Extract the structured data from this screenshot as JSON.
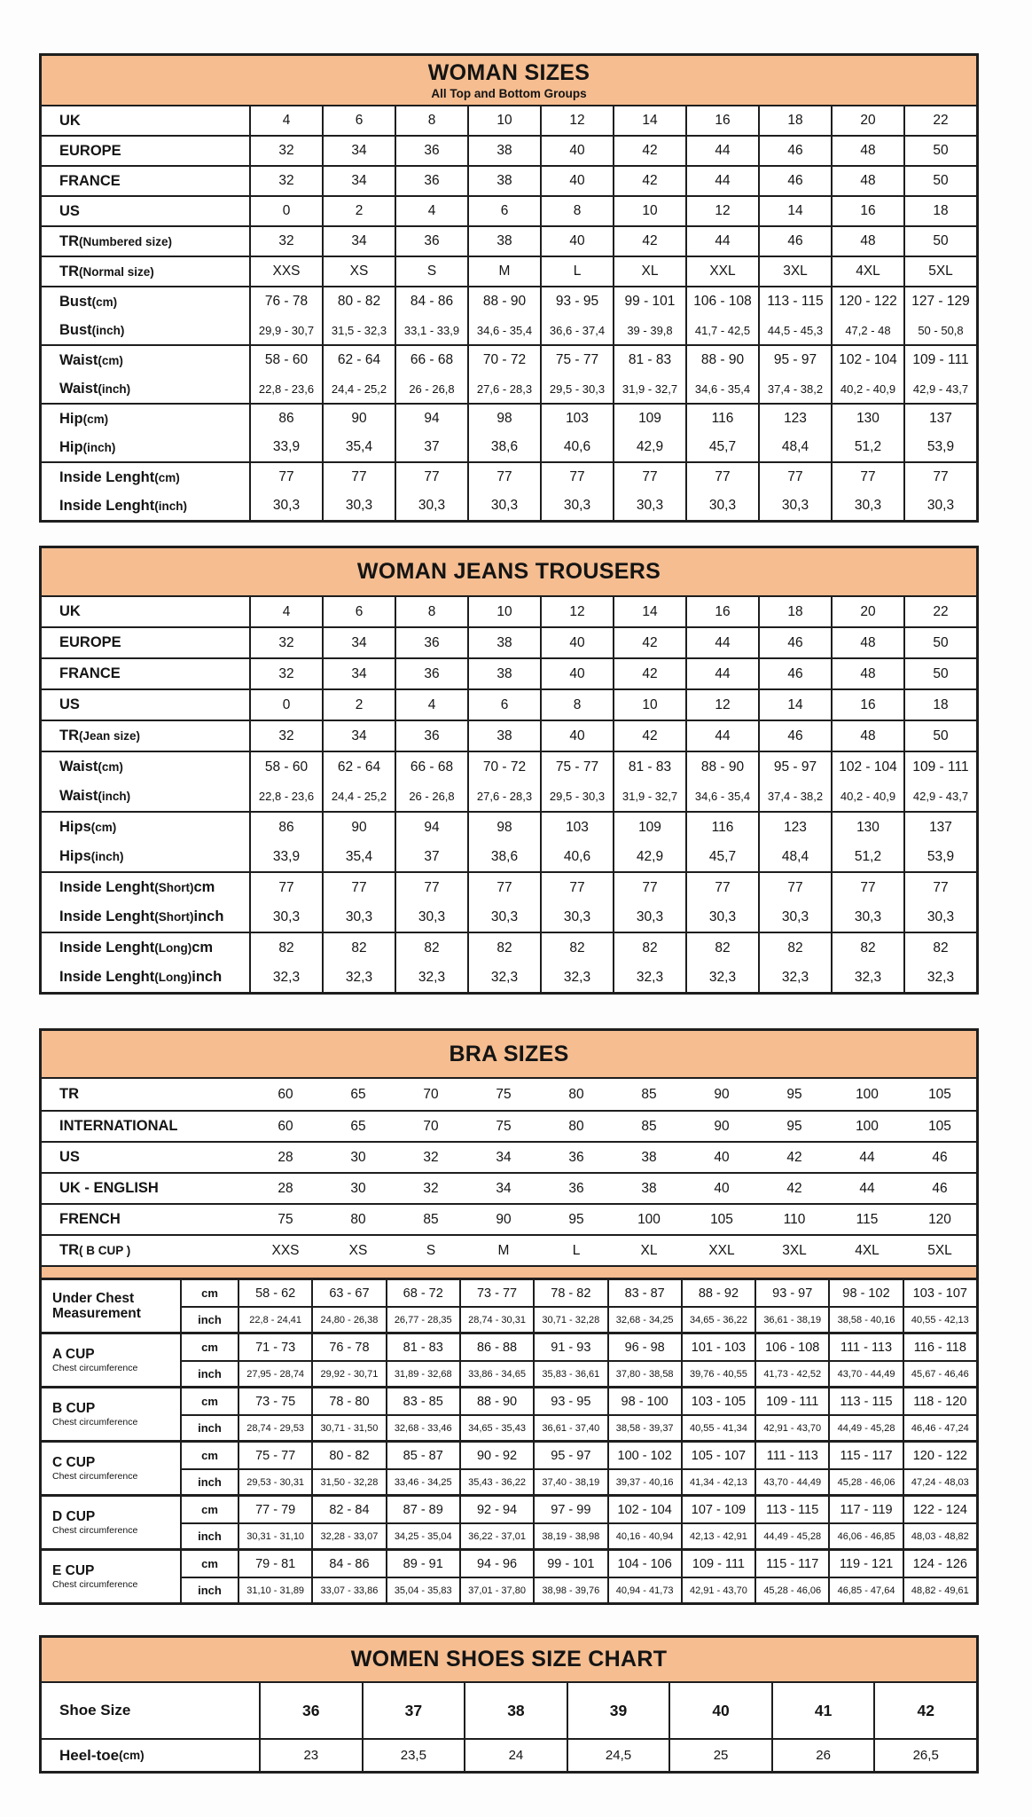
{
  "colors": {
    "header_bg": "#F5BD90",
    "border": "#1E1E1E",
    "text": "#141414",
    "page_bg": "#FDFDFD"
  },
  "woman_sizes": {
    "title": "WOMAN SIZES",
    "subtitle": "All Top and Bottom Groups",
    "groups": [
      [
        {
          "label": "UK",
          "values": [
            "4",
            "6",
            "8",
            "10",
            "12",
            "14",
            "16",
            "18",
            "20",
            "22"
          ]
        }
      ],
      [
        {
          "label": "EUROPE",
          "values": [
            "32",
            "34",
            "36",
            "38",
            "40",
            "42",
            "44",
            "46",
            "48",
            "50"
          ]
        }
      ],
      [
        {
          "label": "FRANCE",
          "values": [
            "32",
            "34",
            "36",
            "38",
            "40",
            "42",
            "44",
            "46",
            "48",
            "50"
          ]
        }
      ],
      [
        {
          "label": "US",
          "values": [
            "0",
            "2",
            "4",
            "6",
            "8",
            "10",
            "12",
            "14",
            "16",
            "18"
          ]
        }
      ],
      [
        {
          "label": "TR (Numbered size)",
          "values": [
            "32",
            "34",
            "36",
            "38",
            "40",
            "42",
            "44",
            "46",
            "48",
            "50"
          ]
        }
      ],
      [
        {
          "label": "TR (Normal size)",
          "values": [
            "XXS",
            "XS",
            "S",
            "M",
            "L",
            "XL",
            "XXL",
            "3XL",
            "4XL",
            "5XL"
          ]
        }
      ],
      [
        {
          "label": "Bust (cm)",
          "values": [
            "76 - 78",
            "80 - 82",
            "84 - 86",
            "88 - 90",
            "93 - 95",
            "99 - 101",
            "106 - 108",
            "113 - 115",
            "120 - 122",
            "127 - 129"
          ]
        },
        {
          "label": "Bust (inch)",
          "small": true,
          "values": [
            "29,9 - 30,7",
            "31,5 - 32,3",
            "33,1 - 33,9",
            "34,6 - 35,4",
            "36,6 - 37,4",
            "39 - 39,8",
            "41,7 - 42,5",
            "44,5 - 45,3",
            "47,2 - 48",
            "50 - 50,8"
          ]
        }
      ],
      [
        {
          "label": "Waist (cm)",
          "values": [
            "58 - 60",
            "62 - 64",
            "66 - 68",
            "70 - 72",
            "75 - 77",
            "81 - 83",
            "88 - 90",
            "95 - 97",
            "102 - 104",
            "109 - 111"
          ]
        },
        {
          "label": "Waist (inch)",
          "small": true,
          "values": [
            "22,8 - 23,6",
            "24,4 - 25,2",
            "26 - 26,8",
            "27,6 - 28,3",
            "29,5 - 30,3",
            "31,9 - 32,7",
            "34,6 - 35,4",
            "37,4 - 38,2",
            "40,2 - 40,9",
            "42,9 - 43,7"
          ]
        }
      ],
      [
        {
          "label": "Hip (cm)",
          "values": [
            "86",
            "90",
            "94",
            "98",
            "103",
            "109",
            "116",
            "123",
            "130",
            "137"
          ]
        },
        {
          "label": "Hip (inch)",
          "values": [
            "33,9",
            "35,4",
            "37",
            "38,6",
            "40,6",
            "42,9",
            "45,7",
            "48,4",
            "51,2",
            "53,9"
          ]
        }
      ],
      [
        {
          "label": "Inside Lenght (cm)",
          "values": [
            "77",
            "77",
            "77",
            "77",
            "77",
            "77",
            "77",
            "77",
            "77",
            "77"
          ]
        },
        {
          "label": "Inside Lenght (inch)",
          "values": [
            "30,3",
            "30,3",
            "30,3",
            "30,3",
            "30,3",
            "30,3",
            "30,3",
            "30,3",
            "30,3",
            "30,3"
          ]
        }
      ]
    ]
  },
  "jeans": {
    "title": "WOMAN JEANS TROUSERS",
    "groups": [
      [
        {
          "label": "UK",
          "values": [
            "4",
            "6",
            "8",
            "10",
            "12",
            "14",
            "16",
            "18",
            "20",
            "22"
          ]
        }
      ],
      [
        {
          "label": "EUROPE",
          "values": [
            "32",
            "34",
            "36",
            "38",
            "40",
            "42",
            "44",
            "46",
            "48",
            "50"
          ]
        }
      ],
      [
        {
          "label": "FRANCE",
          "values": [
            "32",
            "34",
            "36",
            "38",
            "40",
            "42",
            "44",
            "46",
            "48",
            "50"
          ]
        }
      ],
      [
        {
          "label": "US",
          "values": [
            "0",
            "2",
            "4",
            "6",
            "8",
            "10",
            "12",
            "14",
            "16",
            "18"
          ]
        }
      ],
      [
        {
          "label": "TR (Jean size)",
          "values": [
            "32",
            "34",
            "36",
            "38",
            "40",
            "42",
            "44",
            "46",
            "48",
            "50"
          ]
        }
      ],
      [
        {
          "label": "Waist (cm)",
          "values": [
            "58 - 60",
            "62 - 64",
            "66 - 68",
            "70 - 72",
            "75 - 77",
            "81 - 83",
            "88 - 90",
            "95 - 97",
            "102 - 104",
            "109 - 111"
          ]
        },
        {
          "label": "Waist (inch)",
          "small": true,
          "values": [
            "22,8 - 23,6",
            "24,4 - 25,2",
            "26 - 26,8",
            "27,6 - 28,3",
            "29,5 - 30,3",
            "31,9 - 32,7",
            "34,6 - 35,4",
            "37,4 - 38,2",
            "40,2 - 40,9",
            "42,9 - 43,7"
          ]
        }
      ],
      [
        {
          "label": "Hips (cm)",
          "values": [
            "86",
            "90",
            "94",
            "98",
            "103",
            "109",
            "116",
            "123",
            "130",
            "137"
          ]
        },
        {
          "label": "Hips (inch)",
          "values": [
            "33,9",
            "35,4",
            "37",
            "38,6",
            "40,6",
            "42,9",
            "45,7",
            "48,4",
            "51,2",
            "53,9"
          ]
        }
      ],
      [
        {
          "label": "Inside Lenght (Short) cm",
          "values": [
            "77",
            "77",
            "77",
            "77",
            "77",
            "77",
            "77",
            "77",
            "77",
            "77"
          ]
        },
        {
          "label": "Inside Lenght (Short) inch",
          "values": [
            "30,3",
            "30,3",
            "30,3",
            "30,3",
            "30,3",
            "30,3",
            "30,3",
            "30,3",
            "30,3",
            "30,3"
          ]
        }
      ],
      [
        {
          "label": "Inside Lenght (Long) cm",
          "values": [
            "82",
            "82",
            "82",
            "82",
            "82",
            "82",
            "82",
            "82",
            "82",
            "82"
          ]
        },
        {
          "label": "Inside Lenght (Long) inch",
          "values": [
            "32,3",
            "32,3",
            "32,3",
            "32,3",
            "32,3",
            "32,3",
            "32,3",
            "32,3",
            "32,3",
            "32,3"
          ]
        }
      ]
    ]
  },
  "bra": {
    "title": "BRA SIZES",
    "top_rows": [
      {
        "label": "TR",
        "values": [
          "60",
          "65",
          "70",
          "75",
          "80",
          "85",
          "90",
          "95",
          "100",
          "105"
        ]
      },
      {
        "label": "INTERNATIONAL",
        "values": [
          "60",
          "65",
          "70",
          "75",
          "80",
          "85",
          "90",
          "95",
          "100",
          "105"
        ]
      },
      {
        "label": "US",
        "values": [
          "28",
          "30",
          "32",
          "34",
          "36",
          "38",
          "40",
          "42",
          "44",
          "46"
        ]
      },
      {
        "label": "UK - ENGLISH",
        "values": [
          "28",
          "30",
          "32",
          "34",
          "36",
          "38",
          "40",
          "42",
          "44",
          "46"
        ]
      },
      {
        "label": "FRENCH",
        "values": [
          "75",
          "80",
          "85",
          "90",
          "95",
          "100",
          "105",
          "110",
          "115",
          "120"
        ]
      },
      {
        "label": "TR ( B CUP )",
        "values": [
          "XXS",
          "XS",
          "S",
          "M",
          "L",
          "XL",
          "XXL",
          "3XL",
          "4XL",
          "5XL"
        ]
      }
    ],
    "cup_groups": [
      {
        "label": "Under Chest Measurement",
        "sublabel": "",
        "cm": [
          "58 - 62",
          "63 - 67",
          "68 - 72",
          "73 - 77",
          "78 - 82",
          "83 - 87",
          "88 - 92",
          "93 - 97",
          "98 - 102",
          "103 - 107"
        ],
        "inch": [
          "22,8 - 24,41",
          "24,80 - 26,38",
          "26,77 - 28,35",
          "28,74 - 30,31",
          "30,71 - 32,28",
          "32,68 - 34,25",
          "34,65 - 36,22",
          "36,61 - 38,19",
          "38,58 - 40,16",
          "40,55 - 42,13"
        ]
      },
      {
        "label": "A CUP",
        "sublabel": "Chest circumference",
        "cm": [
          "71 - 73",
          "76 - 78",
          "81 - 83",
          "86 - 88",
          "91 - 93",
          "96 - 98",
          "101 - 103",
          "106 - 108",
          "111 - 113",
          "116 - 118"
        ],
        "inch": [
          "27,95 - 28,74",
          "29,92 - 30,71",
          "31,89 - 32,68",
          "33,86 - 34,65",
          "35,83 - 36,61",
          "37,80 - 38,58",
          "39,76 - 40,55",
          "41,73 - 42,52",
          "43,70 - 44,49",
          "45,67 - 46,46"
        ]
      },
      {
        "label": "B CUP",
        "sublabel": "Chest circumference",
        "cm": [
          "73 - 75",
          "78 - 80",
          "83 - 85",
          "88 - 90",
          "93 - 95",
          "98 - 100",
          "103 - 105",
          "109 - 111",
          "113 - 115",
          "118 - 120"
        ],
        "inch": [
          "28,74 - 29,53",
          "30,71 - 31,50",
          "32,68 - 33,46",
          "34,65 - 35,43",
          "36,61 - 37,40",
          "38,58 - 39,37",
          "40,55 - 41,34",
          "42,91 - 43,70",
          "44,49 - 45,28",
          "46,46 - 47,24"
        ]
      },
      {
        "label": "C CUP",
        "sublabel": "Chest circumference",
        "cm": [
          "75 - 77",
          "80 - 82",
          "85 - 87",
          "90 - 92",
          "95 - 97",
          "100 - 102",
          "105 - 107",
          "111 - 113",
          "115 - 117",
          "120 - 122"
        ],
        "inch": [
          "29,53 - 30,31",
          "31,50 - 32,28",
          "33,46 - 34,25",
          "35,43 - 36,22",
          "37,40 - 38,19",
          "39,37 - 40,16",
          "41,34 - 42,13",
          "43,70 - 44,49",
          "45,28 - 46,06",
          "47,24 - 48,03"
        ]
      },
      {
        "label": "D CUP",
        "sublabel": "Chest circumference",
        "cm": [
          "77 - 79",
          "82 - 84",
          "87 - 89",
          "92 - 94",
          "97 - 99",
          "102 - 104",
          "107 - 109",
          "113 - 115",
          "117 - 119",
          "122 - 124"
        ],
        "inch": [
          "30,31 - 31,10",
          "32,28 - 33,07",
          "34,25 - 35,04",
          "36,22 - 37,01",
          "38,19 - 38,98",
          "40,16 - 40,94",
          "42,13 - 42,91",
          "44,49 - 45,28",
          "46,06 - 46,85",
          "48,03 - 48,82"
        ]
      },
      {
        "label": "E CUP",
        "sublabel": "Chest circumference",
        "cm": [
          "79 - 81",
          "84 - 86",
          "89 - 91",
          "94 - 96",
          "99 - 101",
          "104 - 106",
          "109 - 111",
          "115 - 117",
          "119 - 121",
          "124 - 126"
        ],
        "inch": [
          "31,10 - 31,89",
          "33,07 - 33,86",
          "35,04 - 35,83",
          "37,01 - 37,80",
          "38,98 - 39,76",
          "40,94 - 41,73",
          "42,91 - 43,70",
          "45,28 - 46,06",
          "46,85 - 47,64",
          "48,82 - 49,61"
        ]
      }
    ],
    "units": {
      "cm": "cm",
      "inch": "inch"
    }
  },
  "shoes": {
    "title": "WOMEN SHOES SIZE CHART",
    "rows": [
      {
        "label": "Shoe Size",
        "bold": true,
        "values": [
          "36",
          "37",
          "38",
          "39",
          "40",
          "41",
          "42"
        ]
      },
      {
        "label": "Heel-toe (cm)",
        "bold": false,
        "values": [
          "23",
          "23,5",
          "24",
          "24,5",
          "25",
          "26",
          "26,5"
        ]
      }
    ]
  }
}
